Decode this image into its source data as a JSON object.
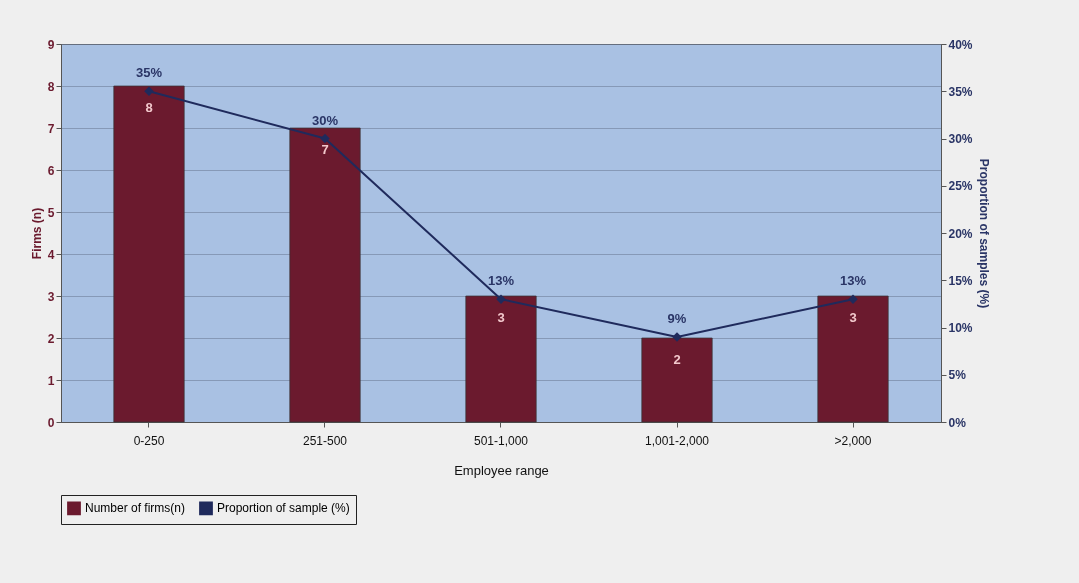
{
  "chart_data": {
    "type": "bar",
    "categories": [
      "0-250",
      "251-500",
      "501-1,000",
      "1,001-2,000",
      ">2,000"
    ],
    "xlabel": "Employee range",
    "ylabel": "Firms (n)",
    "y2label": "Proportion of samples (%)",
    "ylim": [
      0,
      9
    ],
    "yticks": [
      0,
      1,
      2,
      3,
      4,
      5,
      6,
      7,
      8,
      9
    ],
    "y2lim": [
      0,
      40
    ],
    "y2ticks": [
      {
        "value": 0,
        "label": "0%"
      },
      {
        "value": 5,
        "label": "5%"
      },
      {
        "value": 10,
        "label": "10%"
      },
      {
        "value": 15,
        "label": "15%"
      },
      {
        "value": 20,
        "label": "20%"
      },
      {
        "value": 25,
        "label": "25%"
      },
      {
        "value": 30,
        "label": "30%"
      },
      {
        "value": 35,
        "label": "35%"
      },
      {
        "value": 40,
        "label": "40%"
      }
    ],
    "series": [
      {
        "name": "Number of firms(n)",
        "color": "#6b1a2e",
        "values": [
          8,
          7,
          3,
          2,
          3
        ],
        "value_labels": [
          "8",
          "7",
          "3",
          "2",
          "3"
        ]
      },
      {
        "name": "Proportion of sample (%)",
        "type": "line",
        "axis": "y2",
        "color": "#1f2a5c",
        "marker": "diamond",
        "values": [
          35,
          30,
          13,
          9,
          13
        ],
        "value_labels": [
          "35%",
          "30%",
          "13%",
          "9%",
          "13%"
        ]
      }
    ],
    "grid": "y",
    "legend": "bottom"
  }
}
